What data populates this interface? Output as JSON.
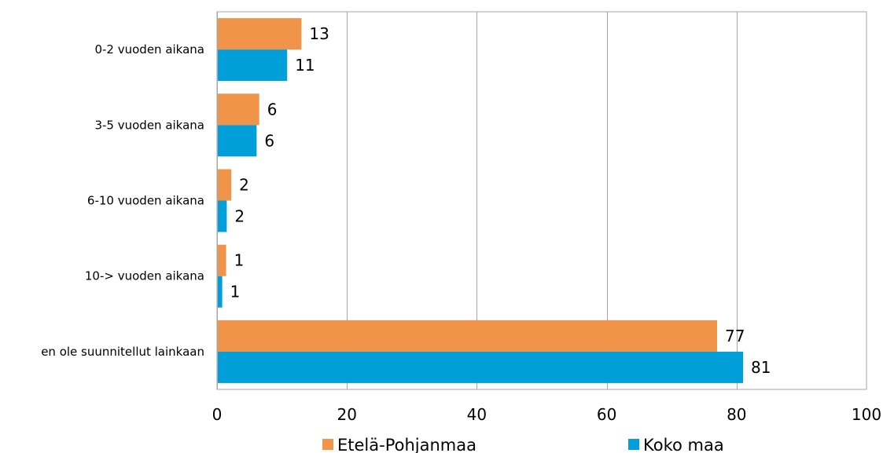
{
  "chart_data": {
    "type": "bar",
    "orientation": "horizontal",
    "title": "",
    "xlabel": "",
    "ylabel": "",
    "xlim": [
      0,
      100
    ],
    "x_ticks": [
      0,
      20,
      40,
      60,
      80,
      100
    ],
    "grid": true,
    "legend_position": "bottom",
    "categories": [
      "0-2 vuoden aikana",
      "3-5 vuoden aikana",
      "6-10 vuoden aikana",
      "10-> vuoden aikana",
      "en ole suunnitellut  lainkaan"
    ],
    "series": [
      {
        "name": "Etelä-Pohjanmaa",
        "color": "#F0944A",
        "values": [
          13,
          6.5,
          2.2,
          1.4,
          77
        ]
      },
      {
        "name": "Koko maa",
        "color": "#009FDA",
        "values": [
          10.8,
          6.1,
          1.5,
          0.8,
          81
        ]
      }
    ],
    "data_labels": [
      [
        "13",
        "6",
        "2",
        "1",
        "77"
      ],
      [
        "11",
        "6",
        "2",
        "1",
        "81"
      ]
    ]
  }
}
